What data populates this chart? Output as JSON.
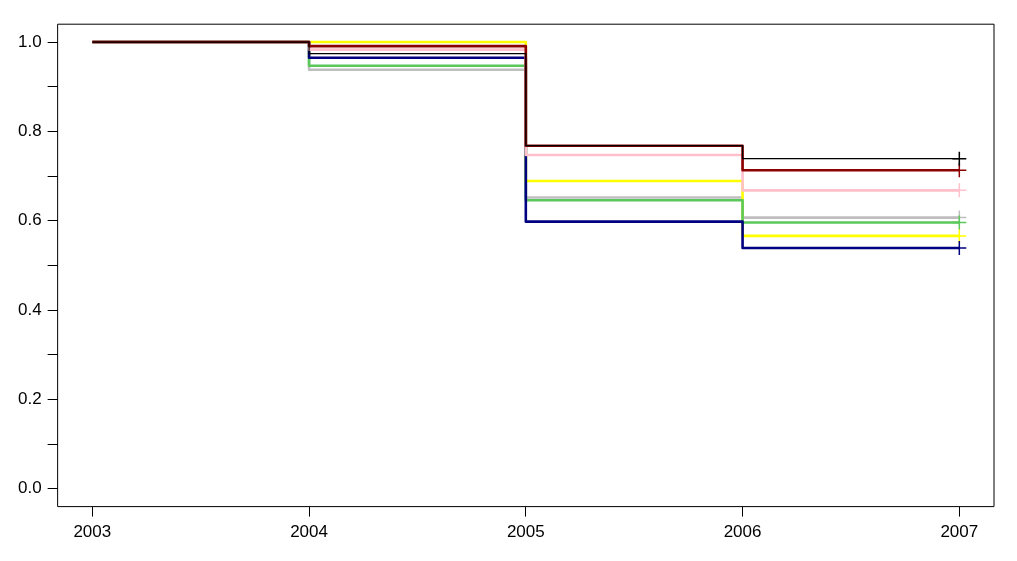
{
  "chart_data": {
    "type": "step",
    "x": [
      2003,
      2004,
      2005,
      2006,
      2007
    ],
    "xlim": [
      2002.84,
      2007.16
    ],
    "xticks": [
      2003,
      2004,
      2005,
      2006,
      2007
    ],
    "ylim": [
      -0.04,
      1.04
    ],
    "yticks": [
      {
        "value": 0,
        "label": "0.0"
      },
      {
        "value": 0.1,
        "label": null
      },
      {
        "value": 0.2,
        "label": "0.2"
      },
      {
        "value": 0.3,
        "label": null
      },
      {
        "value": 0.4,
        "label": "0.4"
      },
      {
        "value": 0.5,
        "label": null
      },
      {
        "value": 0.6,
        "label": "0.6"
      },
      {
        "value": 0.7,
        "label": null
      },
      {
        "value": 0.8,
        "label": "0.8"
      },
      {
        "value": 0.9,
        "label": null
      },
      {
        "value": 1,
        "label": "1.0"
      }
    ],
    "grid": false,
    "legend": false,
    "series": [
      {
        "color": "#000000",
        "values": [
          1,
          0.974,
          0.768,
          0.739,
          0.739
        ]
      },
      {
        "color": "#8b0000",
        "values": [
          1,
          0.991,
          0.768,
          0.713,
          0.713
        ]
      },
      {
        "color": "#ffc0cb",
        "values": [
          1,
          0.983,
          0.747,
          0.668,
          0.668
        ]
      },
      {
        "color": "#000080",
        "values": [
          1,
          0.965,
          0.598,
          0.539,
          0.539
        ]
      },
      {
        "color": "#5ac85a",
        "values": [
          1,
          0.947,
          0.646,
          0.596,
          0.596
        ]
      },
      {
        "color": "#ffff00",
        "values": [
          1,
          1,
          0.689,
          0.566,
          0.566
        ]
      },
      {
        "color": "#bebebe",
        "values": [
          1,
          0.938,
          0.652,
          0.607,
          0.607
        ]
      }
    ]
  }
}
